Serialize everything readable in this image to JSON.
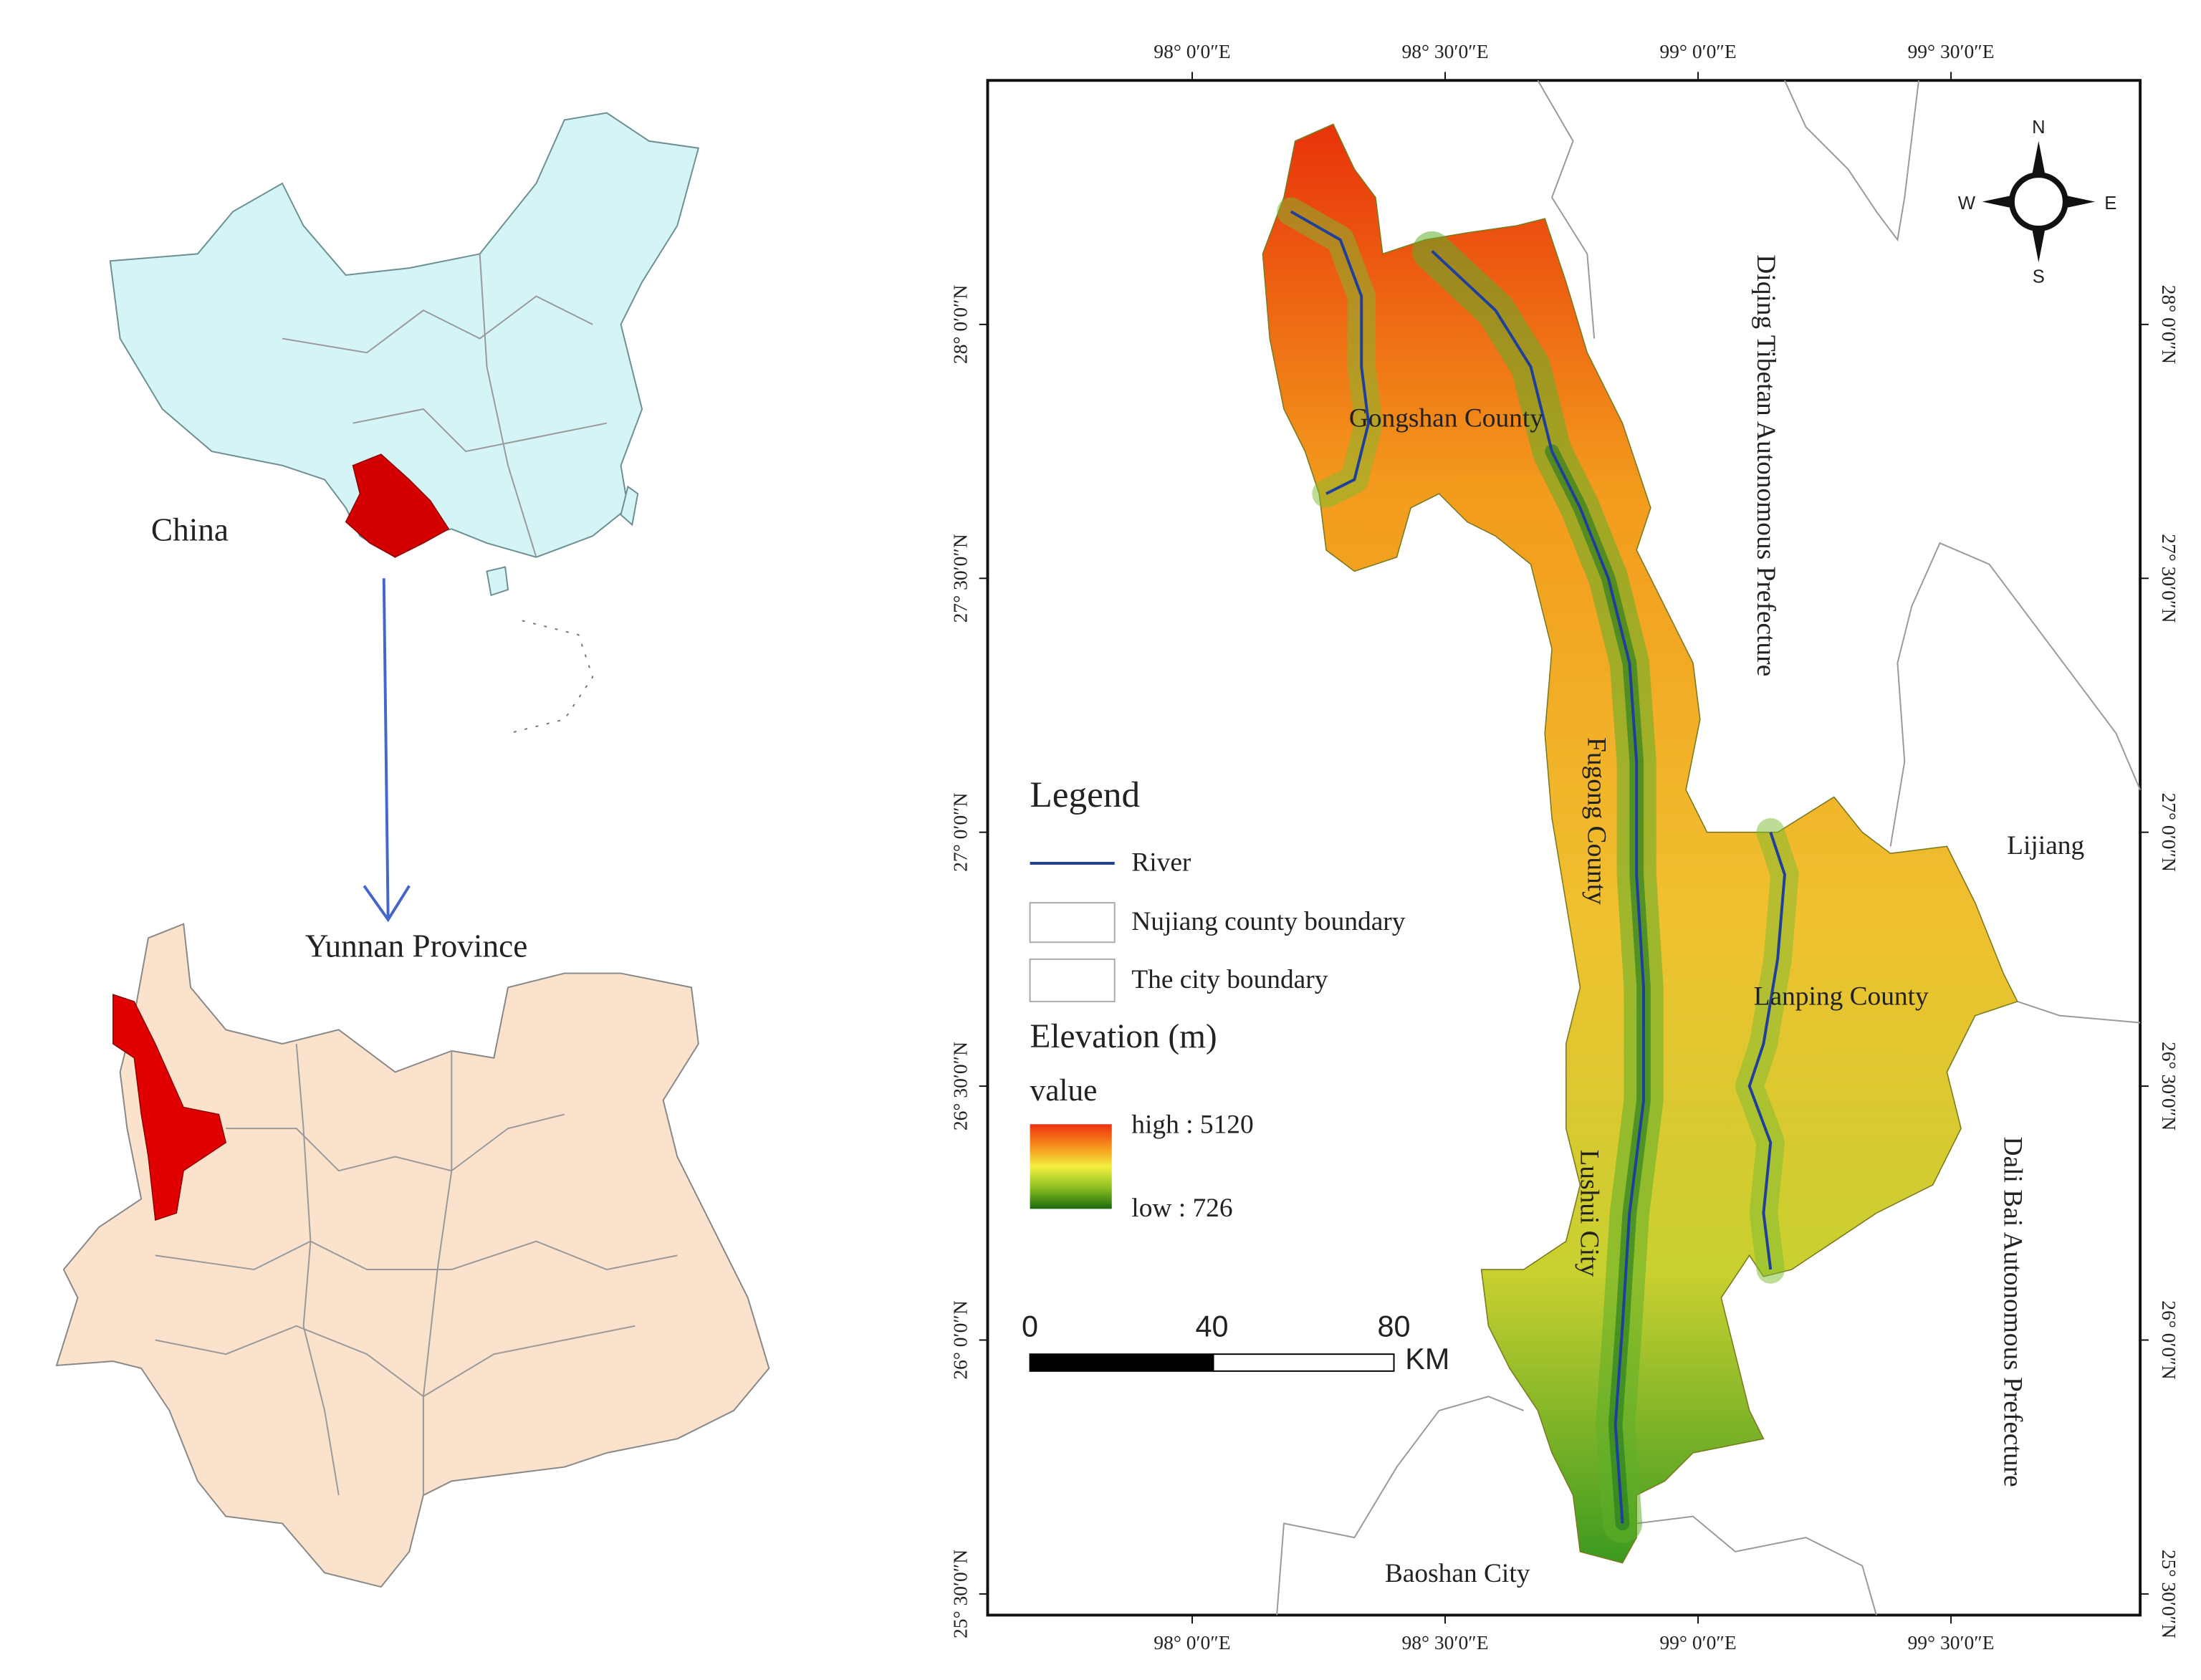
{
  "inset": {
    "china_label": "China",
    "yunnan_label": "Yunnan Province"
  },
  "map": {
    "lon_labels": [
      "98° 0′0″E",
      "98° 30′0″E",
      "99° 0′0″E",
      "99° 30′0″E"
    ],
    "lat_labels": [
      "28° 0′0″N",
      "27° 30′0″N",
      "27° 0′0″N",
      "26° 30′0″N",
      "26° 0′0″N",
      "25° 30′0″N"
    ],
    "regions": [
      "Gongshan County",
      "Fugong County",
      "Lushui City",
      "Lanping County",
      "Diqing Tibetan Autonomous Prefecture",
      "Dali Bai Autonomous Prefecture",
      "Lijiang",
      "Baoshan City"
    ],
    "compass": {
      "n": "N",
      "s": "S",
      "w": "W",
      "e": "E"
    }
  },
  "legend": {
    "title": "Legend",
    "items": [
      "River",
      "Nujiang county boundary",
      "The city boundary"
    ],
    "elevation_title": "Elevation (m)",
    "value_label": "value",
    "high": "high : 5120",
    "low": "low  : 726"
  },
  "scale_bar": {
    "ticks": [
      0,
      40,
      80
    ],
    "unit": "KM"
  }
}
